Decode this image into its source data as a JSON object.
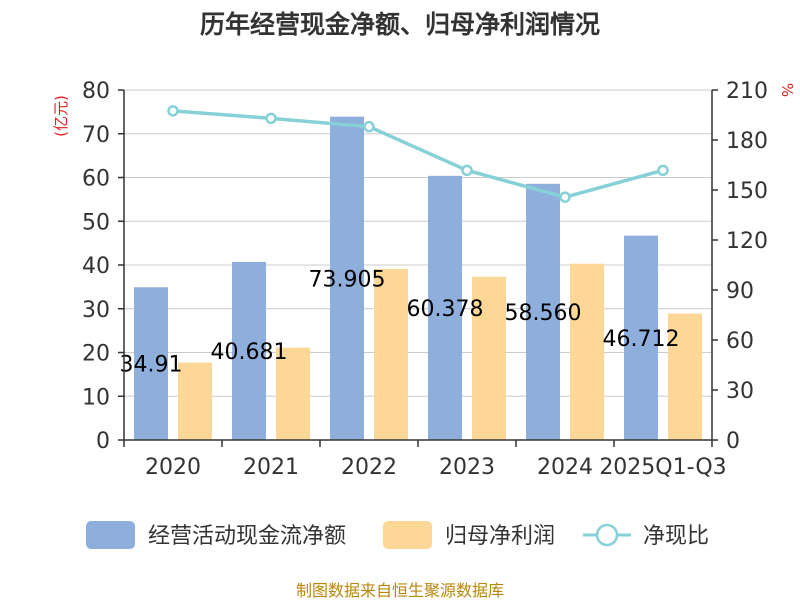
{
  "chart_data": {
    "type": "bar",
    "title": "历年经营现金净额、归母净利润情况",
    "categories": [
      "2020",
      "2021",
      "2022",
      "2023",
      "2024",
      "2025Q1-Q3"
    ],
    "series": [
      {
        "name": "经营活动现金流净额",
        "type": "bar",
        "axis": "left",
        "color": "#8eaedb",
        "values": [
          34.91,
          40.681,
          73.905,
          60.378,
          58.56,
          46.712
        ],
        "labels": [
          "34.91",
          "40.681",
          "73.905",
          "60.378",
          "58.560",
          "46.712"
        ]
      },
      {
        "name": "归母净利润",
        "type": "bar",
        "axis": "left",
        "color": "#fdd795",
        "values": [
          17.7,
          21.1,
          39.1,
          37.3,
          40.3,
          28.9
        ]
      },
      {
        "name": "净现比",
        "type": "line",
        "axis": "right",
        "color": "#86d0d8",
        "values": [
          197.5,
          193.0,
          188.0,
          161.8,
          145.7,
          161.8
        ]
      }
    ],
    "y_left": {
      "unit": "(亿元)",
      "ylim": [
        0,
        80
      ],
      "ticks": [
        "0",
        "10",
        "20",
        "30",
        "40",
        "50",
        "60",
        "70",
        "80"
      ]
    },
    "y_right": {
      "unit": "%",
      "ylim": [
        0,
        210
      ],
      "ticks": [
        "0",
        "30",
        "60",
        "90",
        "120",
        "150",
        "180",
        "210"
      ]
    },
    "grid": true,
    "legend_position": "bottom"
  },
  "source_text": "制图数据来自恒生聚源数据库"
}
